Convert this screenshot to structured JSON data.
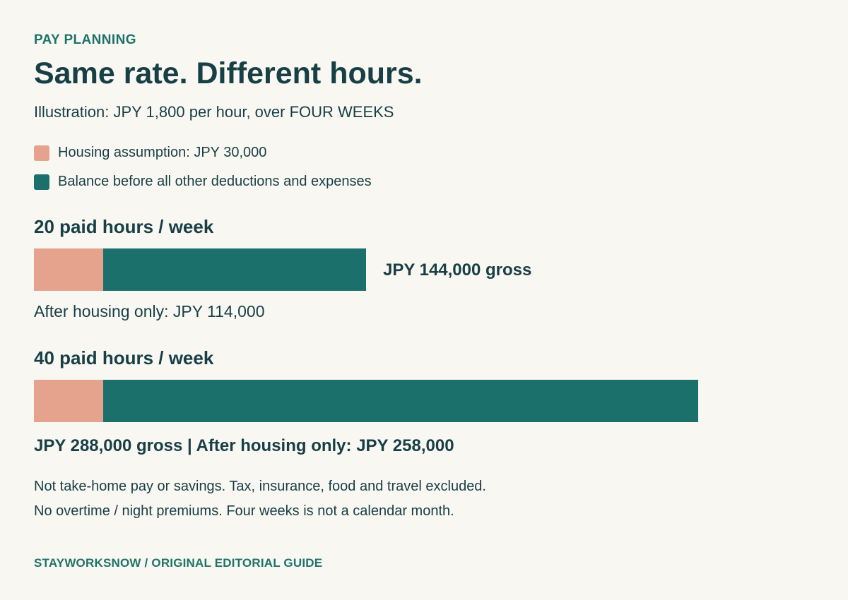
{
  "header": {
    "eyebrow": "PAY PLANNING",
    "title": "Same rate. Different hours.",
    "subtitle": "Illustration: JPY 1,800 per hour, over FOUR WEEKS"
  },
  "colors": {
    "housing": "#e5a28d",
    "balance": "#1b706c",
    "text": "#173f45",
    "accent": "#1e7369",
    "background": "#f9f7f2"
  },
  "legend": [
    {
      "label": "Housing assumption: JPY 30,000"
    },
    {
      "label": "Balance before all other deductions and expenses"
    }
  ],
  "chart_data": {
    "type": "bar",
    "orientation": "horizontal",
    "stacked": true,
    "categories": [
      "20 paid hours / week",
      "40 paid hours / week"
    ],
    "series": [
      {
        "name": "Housing assumption: JPY 30,000",
        "values": [
          30000,
          30000
        ]
      },
      {
        "name": "Balance before all other deductions and expenses",
        "values": [
          114000,
          258000
        ]
      }
    ],
    "totals": [
      144000,
      288000
    ],
    "xlim": [
      0,
      288000
    ],
    "grid": false,
    "legend_position": "top-left"
  },
  "groups": [
    {
      "title": "20 paid hours / week",
      "gross_label": "JPY 144,000 gross",
      "after_label": "After housing only: JPY 114,000"
    },
    {
      "title": "40 paid hours / week",
      "summary_label": "JPY 288,000 gross | After housing only: JPY 258,000"
    }
  ],
  "notes": [
    "Not take-home pay or savings. Tax, insurance, food and travel excluded.",
    "No overtime / night premiums. Four weeks is not a calendar month."
  ],
  "footer": "STAYWORKSNOW / ORIGINAL EDITORIAL GUIDE"
}
